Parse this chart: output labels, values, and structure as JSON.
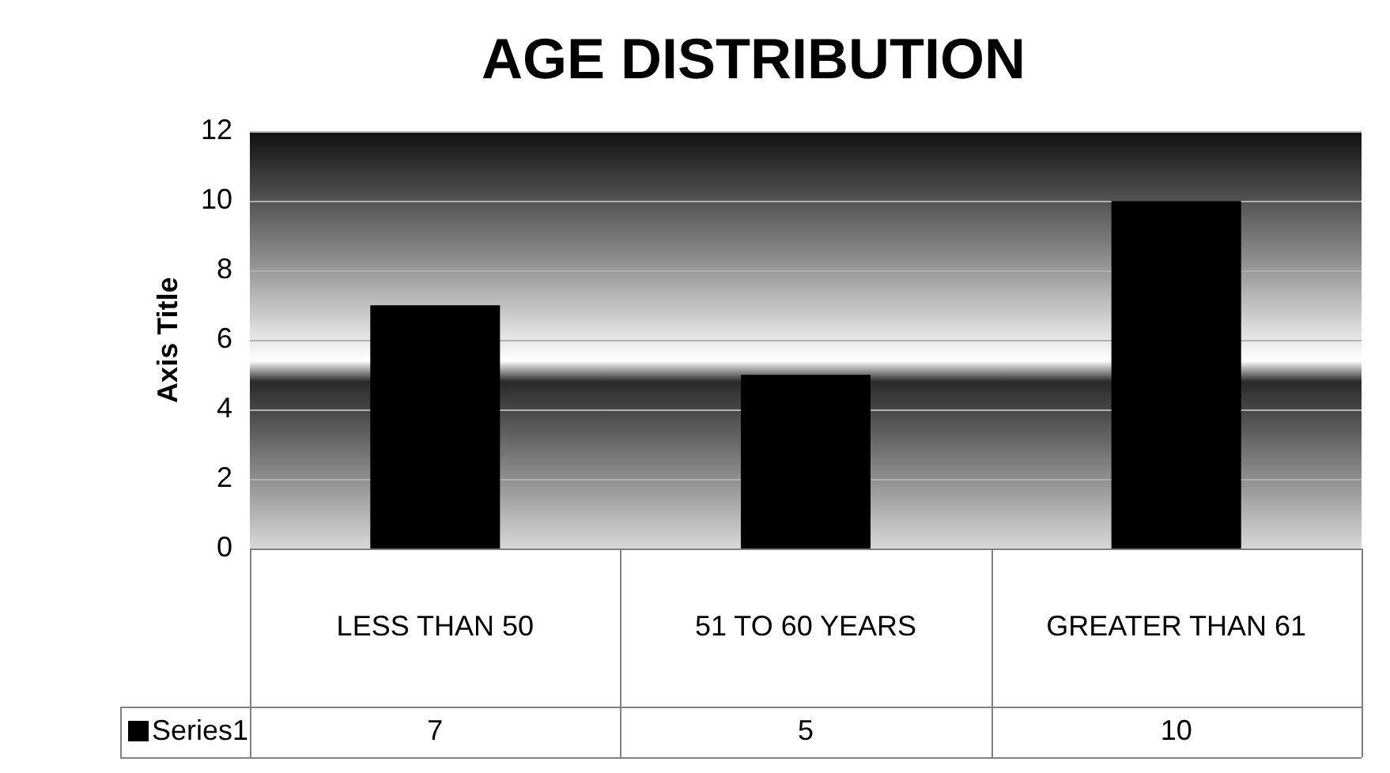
{
  "chart_data": {
    "type": "bar",
    "title": "AGE DISTRIBUTION",
    "ylabel": "Axis Title",
    "categories": [
      "LESS THAN 50",
      "51 TO 60 YEARS",
      "GREATER THAN 61"
    ],
    "series": [
      {
        "name": "Series1",
        "color": "#000000",
        "values": [
          7,
          5,
          10
        ]
      }
    ],
    "ylim": [
      0,
      12
    ],
    "yticks": [
      0,
      2,
      4,
      6,
      8,
      10,
      12
    ],
    "grid": "y",
    "data_labels": true,
    "legend": "bottom"
  }
}
